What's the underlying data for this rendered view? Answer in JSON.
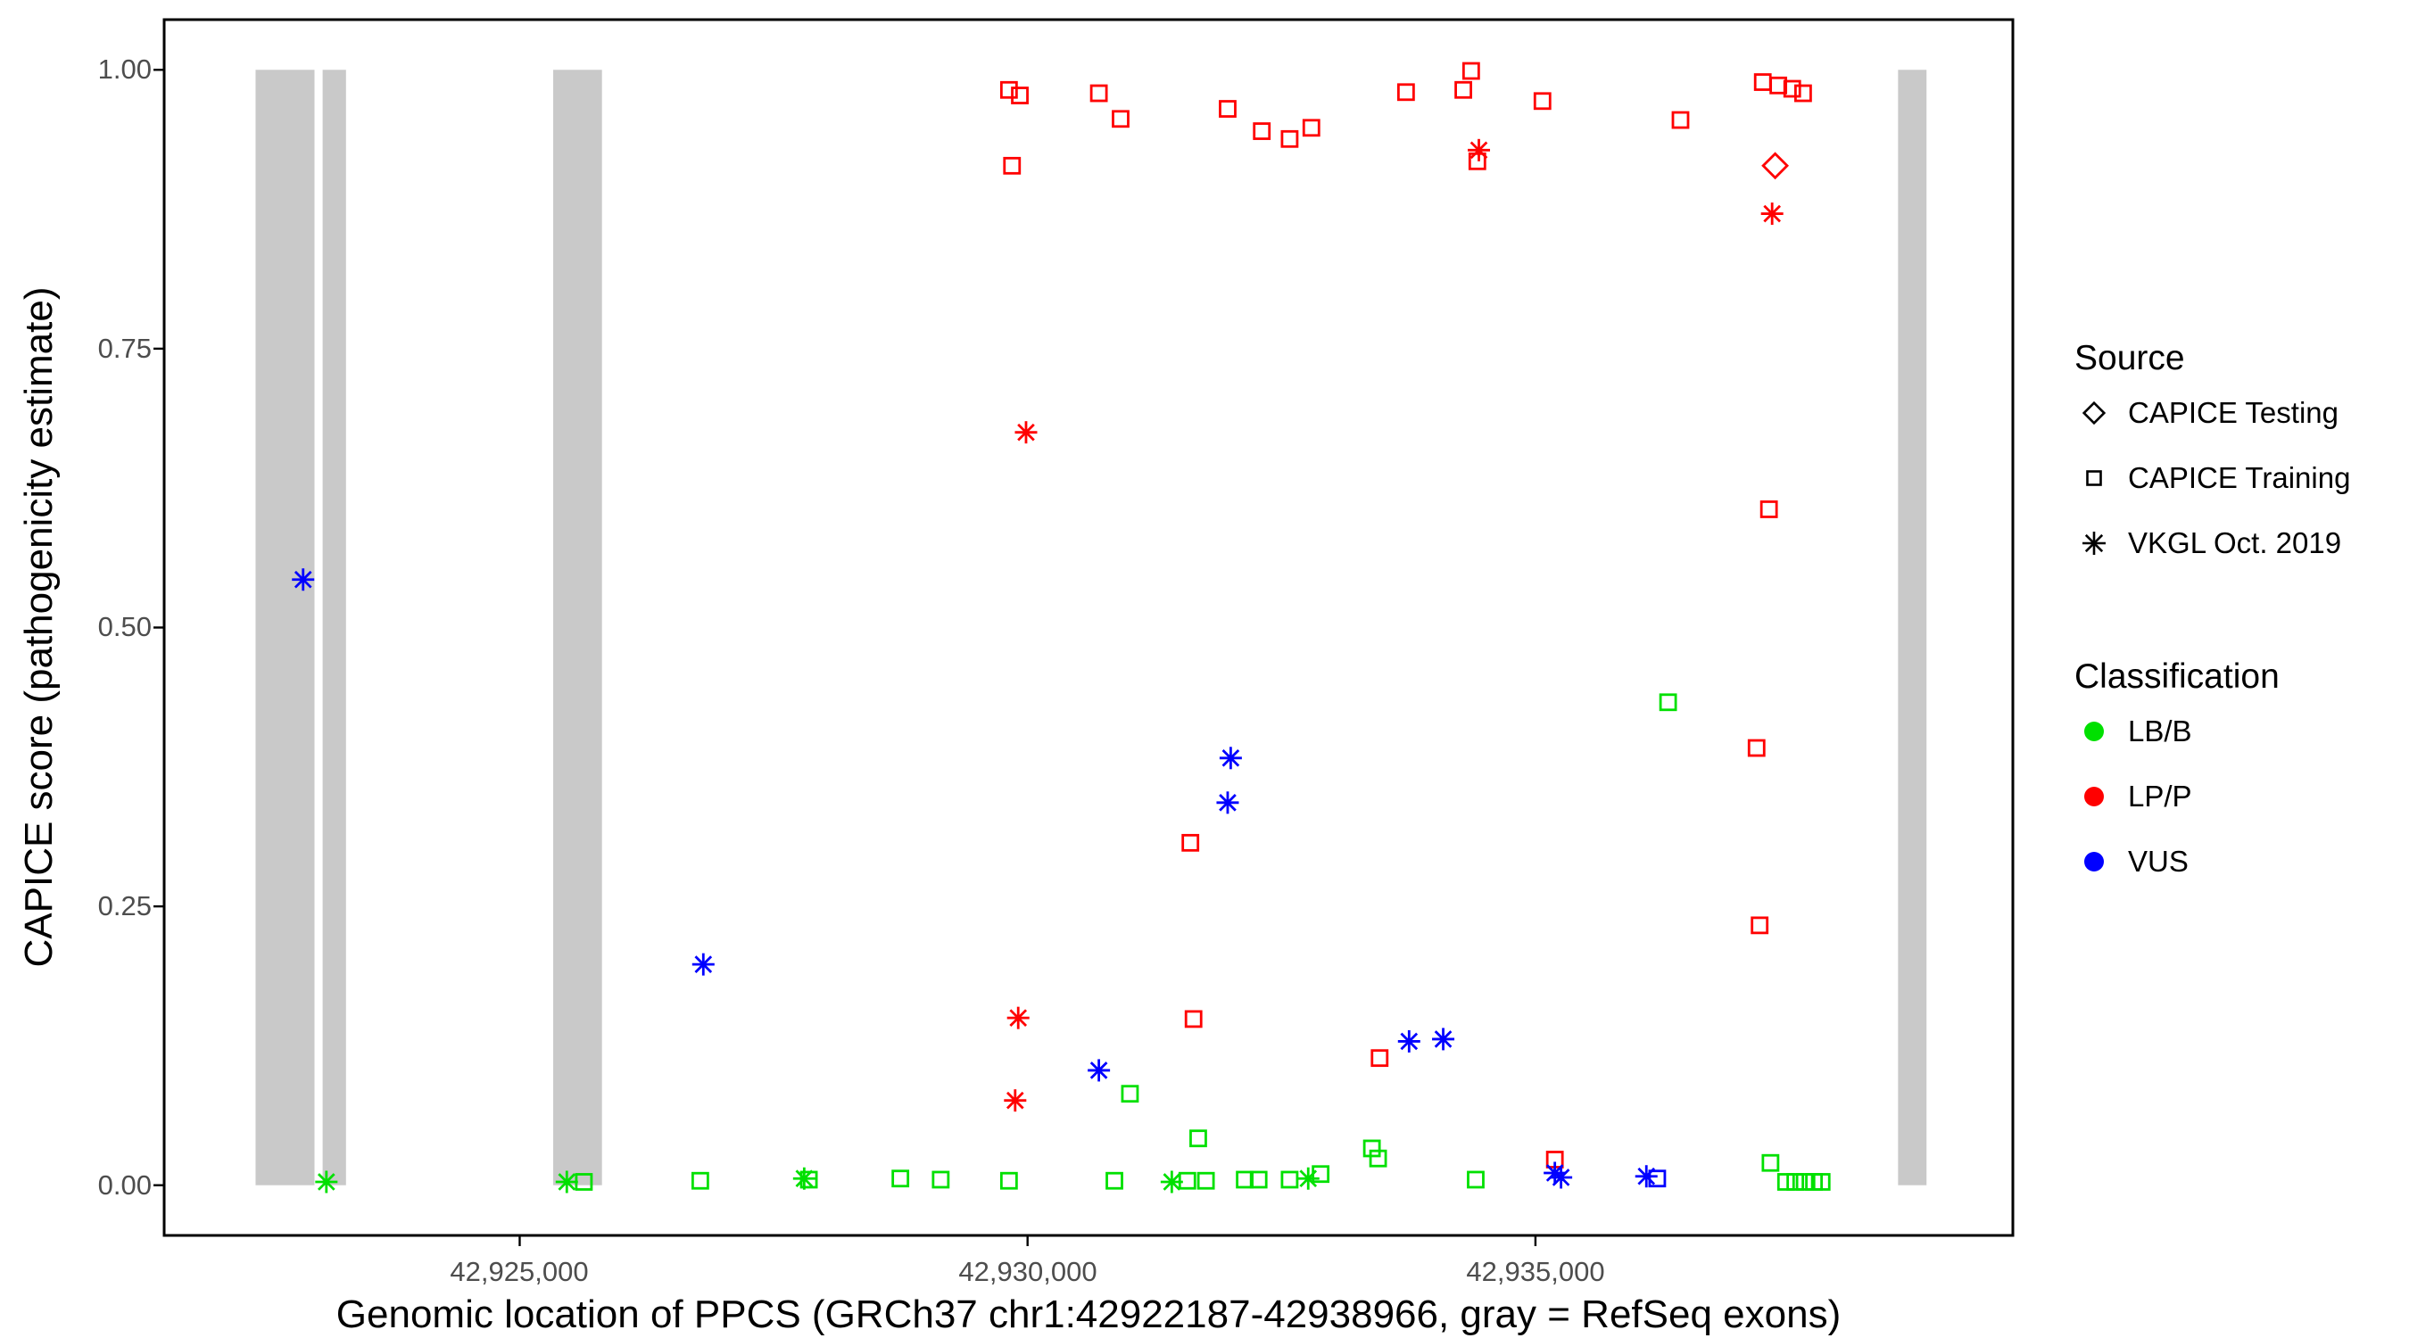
{
  "chart_data": {
    "type": "scatter",
    "title": "",
    "xlabel": "Genomic location of PPCS (GRCh37 chr1:42922187-42938966, gray = RefSeq exons)",
    "ylabel": "CAPICE score (pathogenicity estimate)",
    "xlim": [
      42921500,
      42939700
    ],
    "ylim": [
      -0.045,
      1.045
    ],
    "x_ticks": [
      42925000,
      42930000,
      42935000
    ],
    "x_tick_labels": [
      "42,925,000",
      "42,930,000",
      "42,935,000"
    ],
    "y_ticks": [
      0,
      0.25,
      0.5,
      0.75,
      1.0
    ],
    "y_tick_labels": [
      "0.00",
      "0.25",
      "0.50",
      "0.75",
      "1.00"
    ],
    "grid": false,
    "panel_border_color": "#000000",
    "exon_color": "#c9c9c9",
    "exon_y_range": [
      0,
      1
    ],
    "exons": [
      [
        42922400,
        42922980
      ],
      [
        42923060,
        42923290
      ],
      [
        42925330,
        42925810
      ],
      [
        42938570,
        42938850
      ]
    ],
    "legend": {
      "source_title": "Source",
      "source_items": [
        {
          "label": "CAPICE Testing",
          "shape": "diamond"
        },
        {
          "label": "CAPICE Training",
          "shape": "square"
        },
        {
          "label": "VKGL Oct. 2019",
          "shape": "asterisk"
        }
      ],
      "classification_title": "Classification",
      "classification_items": [
        {
          "label": "LB/B",
          "color": "#00e000"
        },
        {
          "label": "LP/P",
          "color": "#ff0000"
        },
        {
          "label": "VUS",
          "color": "#0000ff"
        }
      ]
    },
    "series": [
      {
        "source": "CAPICE Training",
        "classification": "LB/B",
        "shape": "square",
        "color": "#00e000",
        "points": [
          [
            42925632,
            0.003
          ],
          [
            42926778,
            0.004
          ],
          [
            42927847,
            0.005
          ],
          [
            42928748,
            0.006
          ],
          [
            42929145,
            0.005
          ],
          [
            42929817,
            0.004
          ],
          [
            42930855,
            0.004
          ],
          [
            42931008,
            0.082
          ],
          [
            42931573,
            0.004
          ],
          [
            42931680,
            0.042
          ],
          [
            42931756,
            0.004
          ],
          [
            42932138,
            0.005
          ],
          [
            42932275,
            0.005
          ],
          [
            42932580,
            0.005
          ],
          [
            42932885,
            0.01
          ],
          [
            42933390,
            0.033
          ],
          [
            42933451,
            0.024
          ],
          [
            42934412,
            0.005
          ],
          [
            42936306,
            0.433
          ],
          [
            42937314,
            0.02
          ],
          [
            42937467,
            0.003
          ],
          [
            42937558,
            0.003
          ],
          [
            42937650,
            0.003
          ],
          [
            42937742,
            0.003
          ],
          [
            42937818,
            0.003
          ]
        ]
      },
      {
        "source": "CAPICE Training",
        "classification": "VUS",
        "shape": "square",
        "color": "#0000ff",
        "points": [
          [
            42936199,
            0.006
          ]
        ]
      },
      {
        "source": "CAPICE Training",
        "classification": "LP/P",
        "shape": "square",
        "color": "#ff0000",
        "points": [
          [
            42929817,
            0.982
          ],
          [
            42929924,
            0.977
          ],
          [
            42929847,
            0.914
          ],
          [
            42930702,
            0.979
          ],
          [
            42930916,
            0.956
          ],
          [
            42931970,
            0.965
          ],
          [
            42932306,
            0.945
          ],
          [
            42932580,
            0.938
          ],
          [
            42932794,
            0.948
          ],
          [
            42933726,
            0.98
          ],
          [
            42934290,
            0.982
          ],
          [
            42934367,
            0.999
          ],
          [
            42934428,
            0.918
          ],
          [
            42935069,
            0.972
          ],
          [
            42936428,
            0.955
          ],
          [
            42937238,
            0.989
          ],
          [
            42937391,
            0.986
          ],
          [
            42937528,
            0.983
          ],
          [
            42937635,
            0.979
          ],
          [
            42937299,
            0.606
          ],
          [
            42937177,
            0.392
          ],
          [
            42937207,
            0.233
          ],
          [
            42931603,
            0.307
          ],
          [
            42931634,
            0.149
          ],
          [
            42933466,
            0.114
          ],
          [
            42935191,
            0.023
          ]
        ]
      },
      {
        "source": "CAPICE Testing",
        "classification": "LP/P",
        "shape": "diamond",
        "color": "#ff0000",
        "points": [
          [
            42937360,
            0.914
          ]
        ]
      },
      {
        "source": "VKGL Oct. 2019",
        "classification": "LB/B",
        "shape": "asterisk",
        "color": "#00e000",
        "points": [
          [
            42923097,
            0.003
          ],
          [
            42925464,
            0.003
          ],
          [
            42927801,
            0.006
          ],
          [
            42931420,
            0.003
          ],
          [
            42932763,
            0.006
          ]
        ]
      },
      {
        "source": "VKGL Oct. 2019",
        "classification": "VUS",
        "shape": "asterisk",
        "color": "#0000ff",
        "points": [
          [
            42922868,
            0.543
          ],
          [
            42926808,
            0.198
          ],
          [
            42930702,
            0.103
          ],
          [
            42932000,
            0.383
          ],
          [
            42931970,
            0.343
          ],
          [
            42933756,
            0.129
          ],
          [
            42934092,
            0.131
          ],
          [
            42935191,
            0.011
          ],
          [
            42935252,
            0.007
          ],
          [
            42936092,
            0.008
          ]
        ]
      },
      {
        "source": "VKGL Oct. 2019",
        "classification": "LP/P",
        "shape": "asterisk",
        "color": "#ff0000",
        "points": [
          [
            42929985,
            0.675
          ],
          [
            42929908,
            0.15
          ],
          [
            42929878,
            0.076
          ],
          [
            42934443,
            0.928
          ],
          [
            42937330,
            0.871
          ]
        ]
      }
    ]
  }
}
